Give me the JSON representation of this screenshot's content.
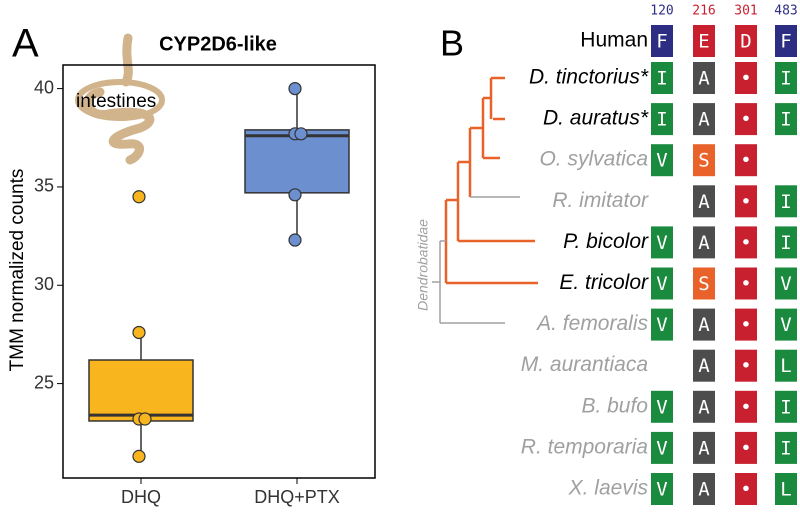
{
  "chart_data": {
    "type": "box",
    "panel_label": "A",
    "title": "CYP2D6-like",
    "ylabel": "TMM normalized counts",
    "annotation": "intestines",
    "categories": [
      "DHQ",
      "DHQ+PTX"
    ],
    "series": [
      {
        "color": "#f9b51d",
        "q1": 23.1,
        "median": 23.4,
        "q3": 26.2,
        "whisker_low": 21.3,
        "whisker_high": 27.6,
        "points": [
          34.5,
          27.6,
          23.2,
          23.2,
          21.3
        ]
      },
      {
        "color": "#6b8fcf",
        "q1": 34.7,
        "median": 37.6,
        "q3": 37.9,
        "whisker_low": 32.3,
        "whisker_high": 40.0,
        "points": [
          40.0,
          37.7,
          37.7,
          34.6,
          32.3
        ]
      }
    ],
    "ylim": [
      20.2,
      41.2
    ],
    "yticks": [
      25,
      30,
      35,
      40
    ]
  },
  "panel_b": {
    "label": "B",
    "clade_label": "Dendrobatidae",
    "positions": [
      "120",
      "216",
      "301",
      "483"
    ],
    "position_colors": [
      "#2d2e83",
      "#c8202f",
      "#c8202f",
      "#2d2e83"
    ],
    "residue_colors": {
      "F": "#2d2e83",
      "E": "#c8202f",
      "D": "#c8202f",
      "•": "#c8202f",
      "I": "#1a8a3e",
      "V": "#1a8a3e",
      "L": "#1a8a3e",
      "A": "#4d4d4d",
      "S": "#e8622a"
    },
    "taxa": [
      {
        "name": "Human",
        "italic": false,
        "color": "#000000",
        "residues": [
          "F",
          "E",
          "D",
          "F"
        ]
      },
      {
        "name": "D. tinctorius*",
        "italic": true,
        "color": "#000000",
        "residues": [
          "I",
          "A",
          "•",
          "I"
        ]
      },
      {
        "name": "D. auratus*",
        "italic": true,
        "color": "#000000",
        "residues": [
          "I",
          "A",
          "•",
          "I"
        ]
      },
      {
        "name": "O. sylvatica",
        "italic": true,
        "color": "#a0a0a0",
        "residues": [
          "V",
          "S",
          "•",
          null
        ]
      },
      {
        "name": "R. imitator",
        "italic": true,
        "color": "#a0a0a0",
        "residues": [
          null,
          "A",
          "•",
          "I"
        ]
      },
      {
        "name": "P. bicolor",
        "italic": true,
        "color": "#000000",
        "residues": [
          "V",
          "A",
          "•",
          "I"
        ]
      },
      {
        "name": "E. tricolor",
        "italic": true,
        "color": "#000000",
        "residues": [
          "V",
          "S",
          "•",
          "V"
        ]
      },
      {
        "name": "A. femoralis",
        "italic": true,
        "color": "#a0a0a0",
        "residues": [
          "V",
          "A",
          "•",
          "V"
        ]
      },
      {
        "name": "M. aurantiaca",
        "italic": true,
        "color": "#a0a0a0",
        "residues": [
          null,
          "A",
          "•",
          "L"
        ]
      },
      {
        "name": "B. bufo",
        "italic": true,
        "color": "#a0a0a0",
        "residues": [
          "V",
          "A",
          "•",
          "I"
        ]
      },
      {
        "name": "R. temporaria",
        "italic": true,
        "color": "#a0a0a0",
        "residues": [
          "V",
          "A",
          "•",
          "I"
        ]
      },
      {
        "name": "X. laevis",
        "italic": true,
        "color": "#a0a0a0",
        "residues": [
          "V",
          "A",
          "•",
          "L"
        ]
      }
    ]
  }
}
